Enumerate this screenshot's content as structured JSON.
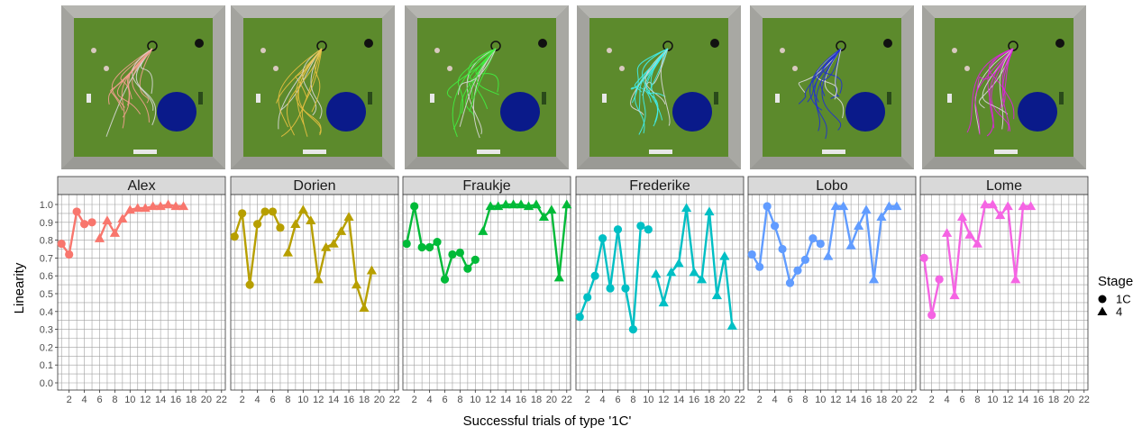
{
  "chart_data": {
    "type": "line",
    "xlabel": "Successful trials of type '1C'",
    "ylabel": "Linearity",
    "ylim": [
      0,
      1
    ],
    "xlim": [
      1,
      22
    ],
    "x_ticks": [
      2,
      4,
      6,
      8,
      10,
      12,
      14,
      16,
      18,
      20,
      22
    ],
    "y_ticks": [
      0.0,
      0.1,
      0.2,
      0.3,
      0.4,
      0.5,
      0.6,
      0.7,
      0.8,
      0.9,
      1.0
    ],
    "y_tick_labels": [
      "0.0",
      "0.1",
      "0.2",
      "0.3",
      "0.4",
      "0.5",
      "0.6",
      "0.7",
      "0.8",
      "0.9",
      "1.0"
    ],
    "grid": true,
    "legend": {
      "title": "Stage",
      "placement": "right",
      "entries": [
        {
          "label": "1C",
          "shape": "circle"
        },
        {
          "label": "4",
          "shape": "triangle"
        }
      ]
    },
    "panels": [
      {
        "name": "Alex",
        "color": "#F8766D",
        "trajectory_color": "#F4A090",
        "stage_1C": {
          "x": [
            1,
            2,
            3,
            4,
            5
          ],
          "y": [
            0.78,
            0.72,
            0.96,
            0.89,
            0.9
          ]
        },
        "stage_4": {
          "x": [
            6,
            7,
            8,
            9,
            10,
            11,
            12,
            13,
            14,
            15,
            16,
            17
          ],
          "y": [
            0.81,
            0.91,
            0.84,
            0.92,
            0.97,
            0.98,
            0.98,
            0.99,
            0.99,
            1.0,
            0.99,
            0.99
          ]
        }
      },
      {
        "name": "Dorien",
        "color": "#B79F00",
        "trajectory_color": "#E8C040",
        "stage_1C": {
          "x": [
            1,
            2,
            3,
            4,
            5,
            6,
            7
          ],
          "y": [
            0.82,
            0.95,
            0.55,
            0.89,
            0.96,
            0.96,
            0.87
          ]
        },
        "stage_4": {
          "x": [
            8,
            9,
            10,
            11,
            12,
            13,
            14,
            15,
            16,
            17,
            18,
            19
          ],
          "y": [
            0.73,
            0.89,
            0.97,
            0.91,
            0.58,
            0.76,
            0.78,
            0.85,
            0.93,
            0.55,
            0.42,
            0.63
          ]
        }
      },
      {
        "name": "Fraukje",
        "color": "#00BA38",
        "trajectory_color": "#40F040",
        "stage_1C": {
          "x": [
            1,
            2,
            3,
            4,
            5,
            6,
            7,
            8,
            9,
            10
          ],
          "y": [
            0.78,
            0.99,
            0.76,
            0.76,
            0.79,
            0.58,
            0.72,
            0.73,
            0.64,
            0.69
          ]
        },
        "stage_4": {
          "x": [
            11,
            12,
            13,
            14,
            15,
            16,
            17,
            18,
            19,
            20,
            21,
            22
          ],
          "y": [
            0.85,
            0.99,
            0.99,
            1.0,
            1.0,
            1.0,
            0.99,
            1.0,
            0.93,
            0.97,
            0.59,
            1.0
          ]
        }
      },
      {
        "name": "Frederike",
        "color": "#00BFC4",
        "trajectory_color": "#40F0F0",
        "stage_1C": {
          "x": [
            1,
            2,
            3,
            4,
            5,
            6,
            7,
            8,
            9,
            10
          ],
          "y": [
            0.37,
            0.48,
            0.6,
            0.81,
            0.53,
            0.86,
            0.53,
            0.3,
            0.88,
            0.86
          ]
        },
        "stage_4": {
          "x": [
            11,
            12,
            13,
            14,
            15,
            16,
            17,
            18,
            19,
            20,
            21
          ],
          "y": [
            0.61,
            0.45,
            0.62,
            0.67,
            0.98,
            0.62,
            0.58,
            0.96,
            0.49,
            0.71,
            0.32
          ]
        }
      },
      {
        "name": "Lobo",
        "color": "#619CFF",
        "trajectory_color": "#2030D0",
        "stage_1C": {
          "x": [
            1,
            2,
            3,
            4,
            5,
            6,
            7,
            8,
            9,
            10
          ],
          "y": [
            0.72,
            0.65,
            0.99,
            0.88,
            0.75,
            0.56,
            0.63,
            0.69,
            0.81,
            0.78
          ]
        },
        "stage_4": {
          "x": [
            11,
            12,
            13,
            14,
            15,
            16,
            17,
            18,
            19,
            20
          ],
          "y": [
            0.71,
            0.99,
            0.99,
            0.77,
            0.88,
            0.97,
            0.58,
            0.93,
            0.99,
            0.99
          ]
        }
      },
      {
        "name": "Lome",
        "color": "#F564E3",
        "trajectory_color": "#E020E0",
        "stage_1C": {
          "x": [
            1,
            2,
            3
          ],
          "y": [
            0.7,
            0.38,
            0.58
          ]
        },
        "stage_4": {
          "x": [
            4,
            5,
            6,
            7,
            8,
            9,
            10,
            11,
            12,
            13,
            14,
            15
          ],
          "y": [
            0.84,
            0.49,
            0.93,
            0.83,
            0.78,
            1.0,
            1.0,
            0.94,
            0.99,
            0.58,
            0.99,
            0.99
          ]
        }
      }
    ]
  }
}
